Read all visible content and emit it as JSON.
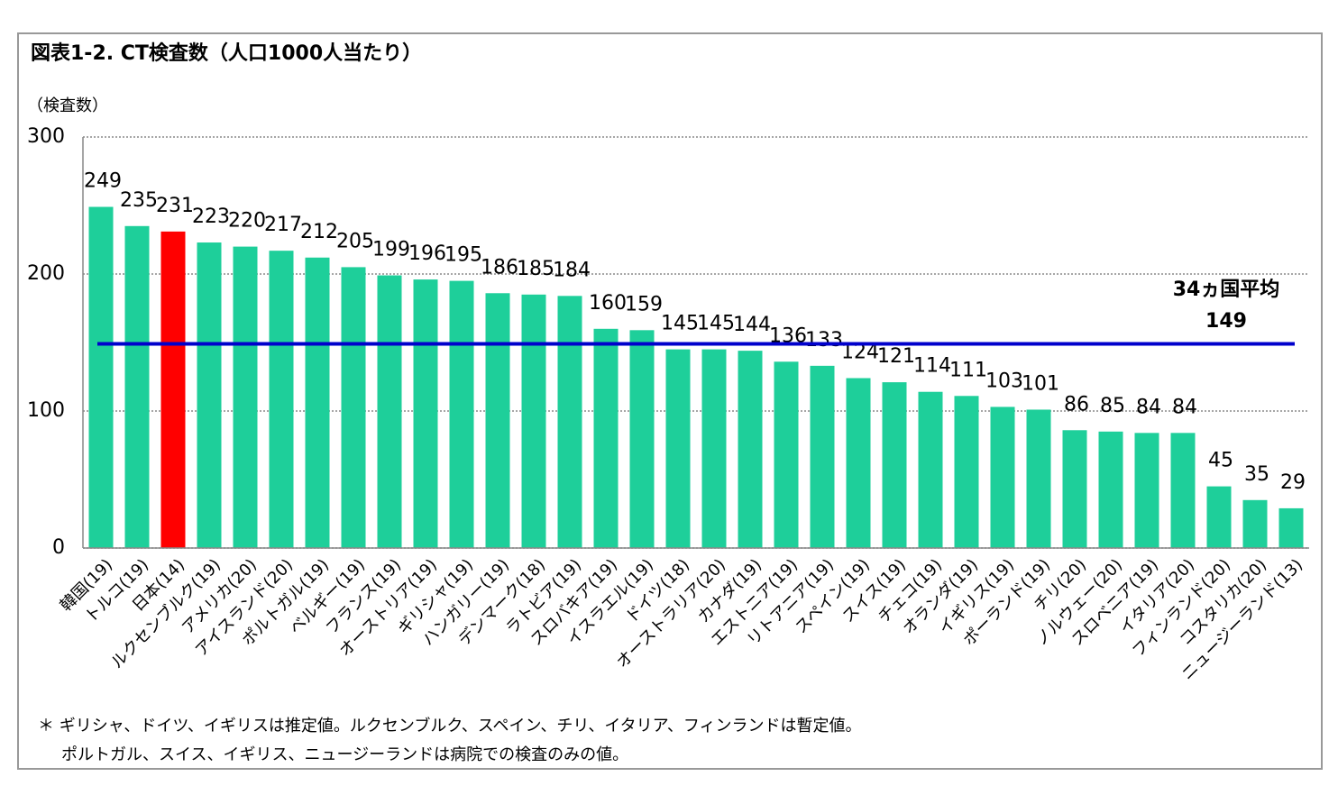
{
  "chart_data": {
    "type": "bar",
    "title": "図表1-2. CT検査数（人口1000人当たり）",
    "y_label": "（検査数）",
    "categories": [
      "韓国(19)",
      "トルコ(19)",
      "日本(14)",
      "ルクセンブルク(19)",
      "アメリカ(20)",
      "アイスランド(20)",
      "ポルトガル(19)",
      "ベルギー(19)",
      "フランス(19)",
      "オーストリア(19)",
      "ギリシャ(19)",
      "ハンガリー(19)",
      "デンマーク(18)",
      "ラトビア(19)",
      "スロバキア(19)",
      "イスラエル(19)",
      "ドイツ(18)",
      "オーストラリア(20)",
      "カナダ(19)",
      "エストニア(19)",
      "リトアニア(19)",
      "スペイン(19)",
      "スイス(19)",
      "チェコ(19)",
      "オランダ(19)",
      "イギリス(19)",
      "ポーランド(19)",
      "チリ(20)",
      "ノルウェー(20)",
      "スロベニア(19)",
      "イタリア(20)",
      "フィンランド(20)",
      "コスタリカ(20)",
      "ニュージーランド(13)"
    ],
    "values": [
      249,
      235,
      231,
      223,
      220,
      217,
      212,
      205,
      199,
      196,
      195,
      186,
      185,
      184,
      160,
      159,
      145,
      145,
      144,
      136,
      133,
      124,
      121,
      114,
      111,
      103,
      101,
      86,
      85,
      84,
      84,
      45,
      35,
      29
    ],
    "colors": [
      "#1ecf9a",
      "#1ecf9a",
      "#ff0000",
      "#1ecf9a",
      "#1ecf9a",
      "#1ecf9a",
      "#1ecf9a",
      "#1ecf9a",
      "#1ecf9a",
      "#1ecf9a",
      "#1ecf9a",
      "#1ecf9a",
      "#1ecf9a",
      "#1ecf9a",
      "#1ecf9a",
      "#1ecf9a",
      "#1ecf9a",
      "#1ecf9a",
      "#1ecf9a",
      "#1ecf9a",
      "#1ecf9a",
      "#1ecf9a",
      "#1ecf9a",
      "#1ecf9a",
      "#1ecf9a",
      "#1ecf9a",
      "#1ecf9a",
      "#1ecf9a",
      "#1ecf9a",
      "#1ecf9a",
      "#1ecf9a",
      "#1ecf9a",
      "#1ecf9a",
      "#1ecf9a"
    ],
    "ylim": [
      0,
      300
    ],
    "yticks": [
      0,
      100,
      200,
      300
    ],
    "grid": true,
    "reference_line": {
      "label": "34ヵ国平均",
      "value": 149,
      "color": "#0000cc"
    },
    "notes": [
      "＊ ギリシャ、ドイツ、イギリスは推定値。ルクセンブルク、スペイン、チリ、イタリア、フィンランドは暫定値。",
      "ポルトガル、スイス、イギリス、ニュージーランドは病院での検査のみの値。"
    ]
  }
}
